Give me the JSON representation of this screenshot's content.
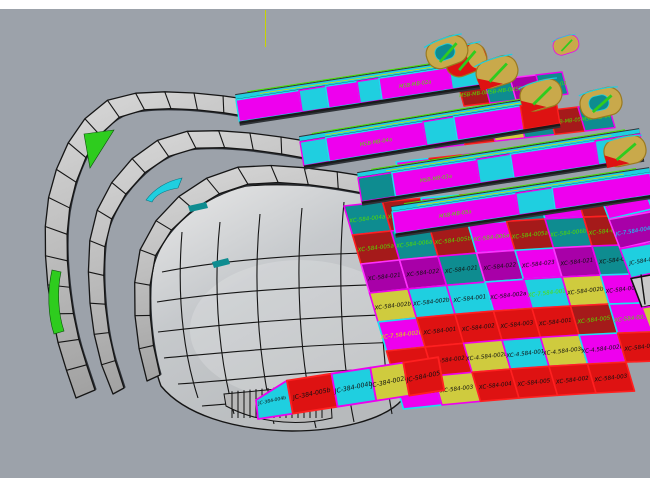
{
  "viewport": {
    "background_color": "#9CA2AA",
    "frame_color": "#FFFFFF",
    "axis_line_color": "#C8D400"
  },
  "palette": {
    "magenta": "#EE00EE",
    "purple": "#A800A8",
    "cyan": "#1FCFE0",
    "teal": "#0E8C90",
    "dkred": "#A51A1A",
    "red": "#DE1212",
    "yellow": "#CFCB3E",
    "khaki": "#C9A94B",
    "green": "#2ECC1E",
    "gray": "#C9C9C9"
  },
  "text_colors": {
    "k": "#101010",
    "g": "#55DD00",
    "y": "#D8E000",
    "c": "#00E5FF"
  },
  "model": {
    "field_rows": [
      [
        {
          "l": "XC-584-004a",
          "f": "teal",
          "t": "g"
        },
        {
          "l": "XC-584-003a",
          "f": "dkred",
          "t": "g"
        },
        {
          "l": "XC-584-004a",
          "f": "magenta",
          "t": "g"
        },
        {
          "l": "XC-584-003a",
          "f": "dkred",
          "t": "g"
        },
        {
          "l": "XC-584-004b",
          "f": "teal",
          "t": "g"
        },
        {
          "l": "XC-584-003a",
          "f": "magenta",
          "t": "g"
        },
        {
          "l": "XC-584-004a",
          "f": "dkred",
          "t": "g"
        },
        {
          "l": "XC-584-003a",
          "f": "magenta",
          "t": "g"
        }
      ],
      [
        {
          "l": "XC-584-005a",
          "f": "dkred",
          "t": "g"
        },
        {
          "l": "XC-584-006a",
          "f": "teal",
          "t": "g"
        },
        {
          "l": "XC-584-005b",
          "f": "dkred",
          "t": "g"
        },
        {
          "l": "XC-584-006a",
          "f": "magenta",
          "t": "g"
        },
        {
          "l": "XC-584-005a",
          "f": "dkred",
          "t": "g"
        },
        {
          "l": "XC-584-006b",
          "f": "teal",
          "t": "g"
        },
        {
          "l": "XC-584-005a",
          "f": "dkred",
          "t": "g"
        },
        {
          "l": "XC-584-006a",
          "f": "teal",
          "t": "g"
        }
      ],
      [
        {
          "l": "XC-584-021",
          "f": "purple",
          "t": "k"
        },
        {
          "l": "XC-584-022",
          "f": "purple",
          "t": "k"
        },
        {
          "l": "XC-584-021",
          "f": "teal",
          "t": "k"
        },
        {
          "l": "XC-584-022",
          "f": "purple",
          "t": "k"
        },
        {
          "l": "XC-584-023",
          "f": "magenta",
          "t": "k"
        },
        {
          "l": "XC-584-021",
          "f": "purple",
          "t": "k"
        },
        {
          "l": "XC-584-022",
          "f": "teal",
          "t": "k"
        },
        {
          "l": "XC-584-023",
          "f": "purple",
          "t": "g"
        }
      ],
      [
        {
          "l": "XC-584-002b",
          "f": "yellow",
          "t": "k"
        },
        {
          "l": "XC-584-002b",
          "f": "cyan",
          "t": "k"
        },
        {
          "l": "XC-584-001",
          "f": "cyan",
          "t": "k"
        },
        {
          "l": "XC-584-002a",
          "f": "magenta",
          "t": "k"
        },
        {
          "l": "XC-7.584-001",
          "f": "cyan",
          "t": "g"
        },
        {
          "l": "XC-584-002b",
          "f": "yellow",
          "t": "k"
        },
        {
          "l": "XC-584-003b",
          "f": "magenta",
          "t": "k"
        },
        {
          "l": "XC-584-002a",
          "f": "cyan",
          "t": "k"
        }
      ],
      [
        {
          "l": "XC-7.584-002b",
          "f": "magenta",
          "t": "y"
        },
        {
          "l": "XC-584-001",
          "f": "red",
          "t": "k"
        },
        {
          "l": "XC-584-002",
          "f": "red",
          "t": "k"
        },
        {
          "l": "XC-584-003",
          "f": "red",
          "t": "k"
        },
        {
          "l": "XC-584-001",
          "f": "red",
          "t": "k"
        },
        {
          "l": "XC-584-005",
          "f": "dkred",
          "t": "g"
        },
        {
          "l": "XC-584-003a",
          "f": "magenta",
          "t": "g"
        },
        {
          "l": "XC-584-002",
          "f": "red",
          "t": "k"
        }
      ],
      [
        {
          "l": "XC-584-001",
          "f": "red",
          "t": "k"
        },
        {
          "l": "XC-584-002",
          "f": "red",
          "t": "k"
        },
        {
          "l": "XC-4.584-002b",
          "f": "yellow",
          "t": "k"
        },
        {
          "l": "XC-4.584-001",
          "f": "cyan",
          "t": "k"
        },
        {
          "l": "XC-4.584-003b",
          "f": "yellow",
          "t": "k"
        },
        {
          "l": "XC-4.584-002b",
          "f": "magenta",
          "t": "k"
        },
        {
          "l": "XC-584-002",
          "f": "red",
          "t": "k"
        }
      ],
      [
        {
          "l": "XC-4.584-002b",
          "f": "magenta",
          "t": "k"
        },
        {
          "l": "XC-584-003",
          "f": "yellow",
          "t": "k"
        },
        {
          "l": "XC-584-004",
          "f": "red",
          "t": "k"
        },
        {
          "l": "XC-584-005",
          "f": "red",
          "t": "k"
        },
        {
          "l": "XC-584-002",
          "f": "red",
          "t": "k"
        },
        {
          "l": "XC-584-003",
          "f": "red",
          "t": "k"
        }
      ]
    ],
    "strips": [
      [
        {
          "l": "MSB-MB-01",
          "f": "dkred",
          "t": "g"
        },
        {
          "l": "MSB-MB-02",
          "f": "teal",
          "t": "g"
        },
        {
          "l": "MSB-MB-01",
          "f": "purple",
          "t": "g"
        },
        {
          "l": "MSB-MB-03",
          "f": "teal",
          "t": "g"
        }
      ],
      [
        {
          "l": "MSB-MB-04",
          "f": "teal",
          "t": "g"
        },
        {
          "l": "MSB-MB-05",
          "f": "dkred",
          "t": "g"
        },
        {
          "l": "MSB-MB-04",
          "f": "yellow",
          "t": "k"
        },
        {
          "l": "MSB-MB-06",
          "f": "teal",
          "t": "g"
        },
        {
          "l": "MSB-MB-05",
          "f": "dkred",
          "t": "g"
        },
        {
          "l": "MSB-MB-04",
          "f": "teal",
          "t": "g"
        }
      ],
      [
        {
          "l": "XC-584-003a",
          "f": "magenta",
          "t": "g"
        },
        {
          "l": "XC-584-004a",
          "f": "dkred",
          "t": "g"
        },
        {
          "l": "XC-584-003a",
          "f": "teal",
          "t": "g"
        },
        {
          "l": "XC-584-004b",
          "f": "dkred",
          "t": "g"
        },
        {
          "l": "XC-584-003b",
          "f": "teal",
          "t": "g"
        },
        {
          "l": "XC-584-004a",
          "f": "dkred",
          "t": "g"
        }
      ]
    ],
    "deck_bands": [
      {
        "segments": [
          {
            "f": "magenta",
            "w": 0.26
          },
          {
            "f": "cyan",
            "w": 0.11
          },
          {
            "f": "magenta",
            "w": 0.13
          },
          {
            "f": "cyan",
            "w": 0.09
          },
          {
            "f": "magenta",
            "w": 0.29,
            "l": "MSB-MB-02a"
          },
          {
            "f": "cyan",
            "w": 0.12
          }
        ]
      },
      {
        "segments": [
          {
            "f": "cyan",
            "w": 0.1
          },
          {
            "f": "magenta",
            "w": 0.38,
            "l": "MSB-MB-04a"
          },
          {
            "f": "cyan",
            "w": 0.12
          },
          {
            "f": "magenta",
            "w": 0.26
          },
          {
            "f": "red",
            "w": 0.14
          }
        ]
      },
      {
        "segments": [
          {
            "f": "teal",
            "w": 0.12
          },
          {
            "f": "magenta",
            "w": 0.3,
            "l": "MSB-MB-03a"
          },
          {
            "f": "cyan",
            "w": 0.12
          },
          {
            "f": "magenta",
            "w": 0.3
          },
          {
            "f": "cyan",
            "w": 0.16
          }
        ]
      },
      {
        "segments": [
          {
            "f": "magenta",
            "w": 0.48,
            "l": "MSB-MB-05a"
          },
          {
            "f": "cyan",
            "w": 0.14
          },
          {
            "f": "magenta",
            "w": 0.38
          }
        ]
      }
    ],
    "bottom_row": [
      {
        "l": "JC-384-004b",
        "f": "cyan",
        "t": "k"
      },
      {
        "l": "JC-384-005b",
        "f": "red",
        "t": "k"
      },
      {
        "l": "JC-384-004b",
        "f": "cyan",
        "t": "k"
      },
      {
        "l": "JC-384-002b",
        "f": "yellow",
        "t": "k"
      },
      {
        "l": "JC-584-005",
        "f": "red",
        "t": "k"
      }
    ],
    "wrap_column": [
      {
        "l": "JC-584-003a",
        "f": "magenta",
        "t": "g"
      },
      {
        "l": "JC-7.584-004b",
        "f": "purple",
        "t": "c"
      },
      {
        "l": "JC-584-002b",
        "f": "cyan",
        "t": "k"
      },
      {
        "l": "",
        "f": "gray",
        "t": "k"
      },
      {
        "l": "JC-584-005b",
        "f": "yellow",
        "t": "k"
      },
      {
        "l": "JC-584-003b",
        "f": "cyan",
        "t": "k"
      }
    ]
  }
}
